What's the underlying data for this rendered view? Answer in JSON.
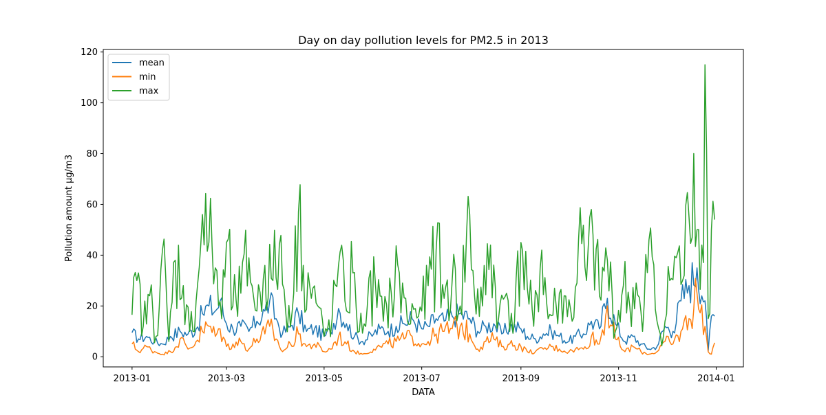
{
  "chart_data": {
    "type": "line",
    "title": "Day on day pollution levels for PM2.5 in 2013",
    "xlabel": "DATA",
    "ylabel": "Pollution amount µg/m3",
    "x_start": "2013-01-01",
    "x_end": "2013-12-31",
    "xlim": [
      "2012-12-14",
      "2014-01-18"
    ],
    "ylim": [
      -4.0,
      121.0
    ],
    "grid": false,
    "legend": "top-left",
    "x_ticks": [
      {
        "date": "2013-01-01",
        "label": "2013-01"
      },
      {
        "date": "2013-03-01",
        "label": "2013-03"
      },
      {
        "date": "2013-05-01",
        "label": "2013-05"
      },
      {
        "date": "2013-07-01",
        "label": "2013-07"
      },
      {
        "date": "2013-09-01",
        "label": "2013-09"
      },
      {
        "date": "2013-11-01",
        "label": "2013-11"
      },
      {
        "date": "2014-01-01",
        "label": "2014-01"
      }
    ],
    "y_ticks": [
      0,
      20,
      40,
      60,
      80,
      100,
      120
    ],
    "series": [
      {
        "name": "mean",
        "color": "#1f77b4",
        "points": [
          [
            "2013-01-01",
            9.5
          ],
          [
            "2013-01-05",
            7
          ],
          [
            "2013-01-10",
            8
          ],
          [
            "2013-01-15",
            6
          ],
          [
            "2013-01-20",
            5
          ],
          [
            "2013-01-25",
            8
          ],
          [
            "2013-01-31",
            10
          ],
          [
            "2013-02-05",
            9
          ],
          [
            "2013-02-10",
            11
          ],
          [
            "2013-02-14",
            17
          ],
          [
            "2013-02-18",
            20
          ],
          [
            "2013-02-22",
            18
          ],
          [
            "2013-02-25",
            22
          ],
          [
            "2013-03-01",
            13
          ],
          [
            "2013-03-05",
            11
          ],
          [
            "2013-03-10",
            12
          ],
          [
            "2013-03-15",
            10
          ],
          [
            "2013-03-20",
            14
          ],
          [
            "2013-03-25",
            18
          ],
          [
            "2013-03-28",
            22
          ],
          [
            "2013-04-01",
            15
          ],
          [
            "2013-04-05",
            9
          ],
          [
            "2013-04-10",
            12
          ],
          [
            "2013-04-15",
            17
          ],
          [
            "2013-04-20",
            10
          ],
          [
            "2013-04-25",
            11
          ],
          [
            "2013-05-01",
            8
          ],
          [
            "2013-05-05",
            10
          ],
          [
            "2013-05-10",
            19
          ],
          [
            "2013-05-15",
            13
          ],
          [
            "2013-05-20",
            8
          ],
          [
            "2013-05-25",
            6
          ],
          [
            "2013-06-01",
            9
          ],
          [
            "2013-06-05",
            11
          ],
          [
            "2013-06-10",
            10
          ],
          [
            "2013-06-15",
            12
          ],
          [
            "2013-06-20",
            13
          ],
          [
            "2013-06-25",
            15
          ],
          [
            "2013-07-01",
            11
          ],
          [
            "2013-07-05",
            12
          ],
          [
            "2013-07-10",
            15
          ],
          [
            "2013-07-15",
            14
          ],
          [
            "2013-07-20",
            16
          ],
          [
            "2013-07-25",
            17
          ],
          [
            "2013-07-31",
            15
          ],
          [
            "2013-08-05",
            10
          ],
          [
            "2013-08-10",
            12
          ],
          [
            "2013-08-15",
            13
          ],
          [
            "2013-08-20",
            9
          ],
          [
            "2013-08-25",
            12
          ],
          [
            "2013-09-01",
            11
          ],
          [
            "2013-09-05",
            8
          ],
          [
            "2013-09-10",
            7
          ],
          [
            "2013-09-15",
            9
          ],
          [
            "2013-09-20",
            10
          ],
          [
            "2013-09-25",
            8
          ],
          [
            "2013-10-01",
            6
          ],
          [
            "2013-10-05",
            8
          ],
          [
            "2013-10-10",
            9
          ],
          [
            "2013-10-15",
            14
          ],
          [
            "2013-10-20",
            11
          ],
          [
            "2013-10-25",
            23
          ],
          [
            "2013-10-30",
            13
          ],
          [
            "2013-11-05",
            6
          ],
          [
            "2013-11-10",
            8
          ],
          [
            "2013-11-15",
            5
          ],
          [
            "2013-11-20",
            3
          ],
          [
            "2013-11-25",
            4
          ],
          [
            "2013-11-30",
            12
          ],
          [
            "2013-12-05",
            10
          ],
          [
            "2013-12-10",
            22
          ],
          [
            "2013-12-15",
            28
          ],
          [
            "2013-12-20",
            35
          ],
          [
            "2013-12-25",
            22
          ],
          [
            "2013-12-27",
            2
          ],
          [
            "2013-12-29",
            16
          ],
          [
            "2013-12-31",
            16
          ]
        ]
      },
      {
        "name": "min",
        "color": "#ff7f0e",
        "points": [
          [
            "2013-01-01",
            5
          ],
          [
            "2013-01-05",
            2
          ],
          [
            "2013-01-10",
            4
          ],
          [
            "2013-01-15",
            2
          ],
          [
            "2013-01-20",
            1
          ],
          [
            "2013-01-25",
            2
          ],
          [
            "2013-01-31",
            7
          ],
          [
            "2013-02-05",
            3
          ],
          [
            "2013-02-10",
            6
          ],
          [
            "2013-02-14",
            10
          ],
          [
            "2013-02-18",
            12
          ],
          [
            "2013-02-22",
            8
          ],
          [
            "2013-02-25",
            11
          ],
          [
            "2013-03-01",
            4
          ],
          [
            "2013-03-05",
            5
          ],
          [
            "2013-03-10",
            6
          ],
          [
            "2013-03-15",
            3
          ],
          [
            "2013-03-20",
            7
          ],
          [
            "2013-03-25",
            9
          ],
          [
            "2013-03-28",
            12
          ],
          [
            "2013-04-01",
            7
          ],
          [
            "2013-04-05",
            2
          ],
          [
            "2013-04-10",
            5
          ],
          [
            "2013-04-15",
            9
          ],
          [
            "2013-04-20",
            4
          ],
          [
            "2013-04-25",
            5
          ],
          [
            "2013-05-01",
            2
          ],
          [
            "2013-05-05",
            3
          ],
          [
            "2013-05-10",
            8
          ],
          [
            "2013-05-15",
            5
          ],
          [
            "2013-05-20",
            2
          ],
          [
            "2013-05-25",
            1
          ],
          [
            "2013-06-01",
            3
          ],
          [
            "2013-06-05",
            4
          ],
          [
            "2013-06-10",
            5
          ],
          [
            "2013-06-15",
            6
          ],
          [
            "2013-06-20",
            7
          ],
          [
            "2013-06-25",
            8
          ],
          [
            "2013-07-01",
            5
          ],
          [
            "2013-07-05",
            6
          ],
          [
            "2013-07-10",
            9
          ],
          [
            "2013-07-15",
            10
          ],
          [
            "2013-07-20",
            11
          ],
          [
            "2013-07-25",
            12
          ],
          [
            "2013-07-31",
            9
          ],
          [
            "2013-08-05",
            3
          ],
          [
            "2013-08-10",
            6
          ],
          [
            "2013-08-15",
            7
          ],
          [
            "2013-08-20",
            4
          ],
          [
            "2013-08-25",
            5
          ],
          [
            "2013-09-01",
            4
          ],
          [
            "2013-09-05",
            2
          ],
          [
            "2013-09-10",
            2
          ],
          [
            "2013-09-15",
            3
          ],
          [
            "2013-09-20",
            4
          ],
          [
            "2013-09-25",
            3
          ],
          [
            "2013-10-01",
            2
          ],
          [
            "2013-10-05",
            3
          ],
          [
            "2013-10-10",
            3
          ],
          [
            "2013-10-15",
            8
          ],
          [
            "2013-10-20",
            5
          ],
          [
            "2013-10-25",
            20
          ],
          [
            "2013-10-30",
            7
          ],
          [
            "2013-11-05",
            2
          ],
          [
            "2013-11-10",
            4
          ],
          [
            "2013-11-15",
            2
          ],
          [
            "2013-11-20",
            1
          ],
          [
            "2013-11-25",
            2
          ],
          [
            "2013-11-30",
            6
          ],
          [
            "2013-12-05",
            5
          ],
          [
            "2013-12-10",
            10
          ],
          [
            "2013-12-15",
            15
          ],
          [
            "2013-12-20",
            25
          ],
          [
            "2013-12-25",
            12
          ],
          [
            "2013-12-27",
            2
          ],
          [
            "2013-12-29",
            1
          ],
          [
            "2013-12-31",
            5.5
          ]
        ]
      },
      {
        "name": "max",
        "color": "#2ca02c",
        "points": [
          [
            "2013-01-01",
            16.5
          ],
          [
            "2013-01-04",
            30
          ],
          [
            "2013-01-08",
            12
          ],
          [
            "2013-01-12",
            24
          ],
          [
            "2013-01-16",
            8
          ],
          [
            "2013-01-20",
            42
          ],
          [
            "2013-01-24",
            6
          ],
          [
            "2013-01-28",
            38
          ],
          [
            "2013-02-02",
            28
          ],
          [
            "2013-02-06",
            10
          ],
          [
            "2013-02-10",
            22
          ],
          [
            "2013-02-14",
            56
          ],
          [
            "2013-02-18",
            45
          ],
          [
            "2013-02-22",
            35
          ],
          [
            "2013-02-26",
            15
          ],
          [
            "2013-03-01",
            45
          ],
          [
            "2013-03-05",
            20
          ],
          [
            "2013-03-10",
            25
          ],
          [
            "2013-03-15",
            39
          ],
          [
            "2013-03-20",
            18
          ],
          [
            "2013-03-25",
            36
          ],
          [
            "2013-03-30",
            30
          ],
          [
            "2013-04-03",
            44
          ],
          [
            "2013-04-07",
            18
          ],
          [
            "2013-04-12",
            25
          ],
          [
            "2013-04-15",
            57
          ],
          [
            "2013-04-18",
            36
          ],
          [
            "2013-04-22",
            28
          ],
          [
            "2013-04-27",
            20
          ],
          [
            "2013-05-01",
            8
          ],
          [
            "2013-05-06",
            15
          ],
          [
            "2013-05-10",
            36
          ],
          [
            "2013-05-14",
            22
          ],
          [
            "2013-05-19",
            33
          ],
          [
            "2013-05-23",
            10
          ],
          [
            "2013-05-28",
            20
          ],
          [
            "2013-06-02",
            29
          ],
          [
            "2013-06-07",
            14
          ],
          [
            "2013-06-12",
            25
          ],
          [
            "2013-06-17",
            33
          ],
          [
            "2013-06-22",
            14
          ],
          [
            "2013-06-27",
            19
          ],
          [
            "2013-07-01",
            18
          ],
          [
            "2013-07-05",
            28
          ],
          [
            "2013-07-10",
            42
          ],
          [
            "2013-07-15",
            23
          ],
          [
            "2013-07-20",
            30
          ],
          [
            "2013-07-25",
            20
          ],
          [
            "2013-07-31",
            56
          ],
          [
            "2013-08-03",
            24
          ],
          [
            "2013-08-08",
            20
          ],
          [
            "2013-08-13",
            44
          ],
          [
            "2013-08-18",
            15
          ],
          [
            "2013-08-23",
            25
          ],
          [
            "2013-08-28",
            14
          ],
          [
            "2013-09-01",
            45
          ],
          [
            "2013-09-05",
            27
          ],
          [
            "2013-09-09",
            12
          ],
          [
            "2013-09-14",
            42
          ],
          [
            "2013-09-18",
            15
          ],
          [
            "2013-09-23",
            20
          ],
          [
            "2013-09-28",
            24
          ],
          [
            "2013-10-03",
            14
          ],
          [
            "2013-10-07",
            46
          ],
          [
            "2013-10-12",
            30
          ],
          [
            "2013-10-16",
            48
          ],
          [
            "2013-10-20",
            24
          ],
          [
            "2013-10-25",
            38
          ],
          [
            "2013-10-30",
            10
          ],
          [
            "2013-11-04",
            28
          ],
          [
            "2013-11-08",
            20
          ],
          [
            "2013-11-12",
            29
          ],
          [
            "2013-11-16",
            10
          ],
          [
            "2013-11-20",
            46
          ],
          [
            "2013-11-25",
            14
          ],
          [
            "2013-11-29",
            8
          ],
          [
            "2013-12-03",
            30
          ],
          [
            "2013-12-07",
            39
          ],
          [
            "2013-12-11",
            30
          ],
          [
            "2013-12-15",
            55
          ],
          [
            "2013-12-18",
            80
          ],
          [
            "2013-12-20",
            50
          ],
          [
            "2013-12-23",
            44
          ],
          [
            "2013-12-25",
            115
          ],
          [
            "2013-12-27",
            15
          ],
          [
            "2013-12-29",
            50
          ],
          [
            "2013-12-31",
            54
          ]
        ]
      }
    ]
  }
}
